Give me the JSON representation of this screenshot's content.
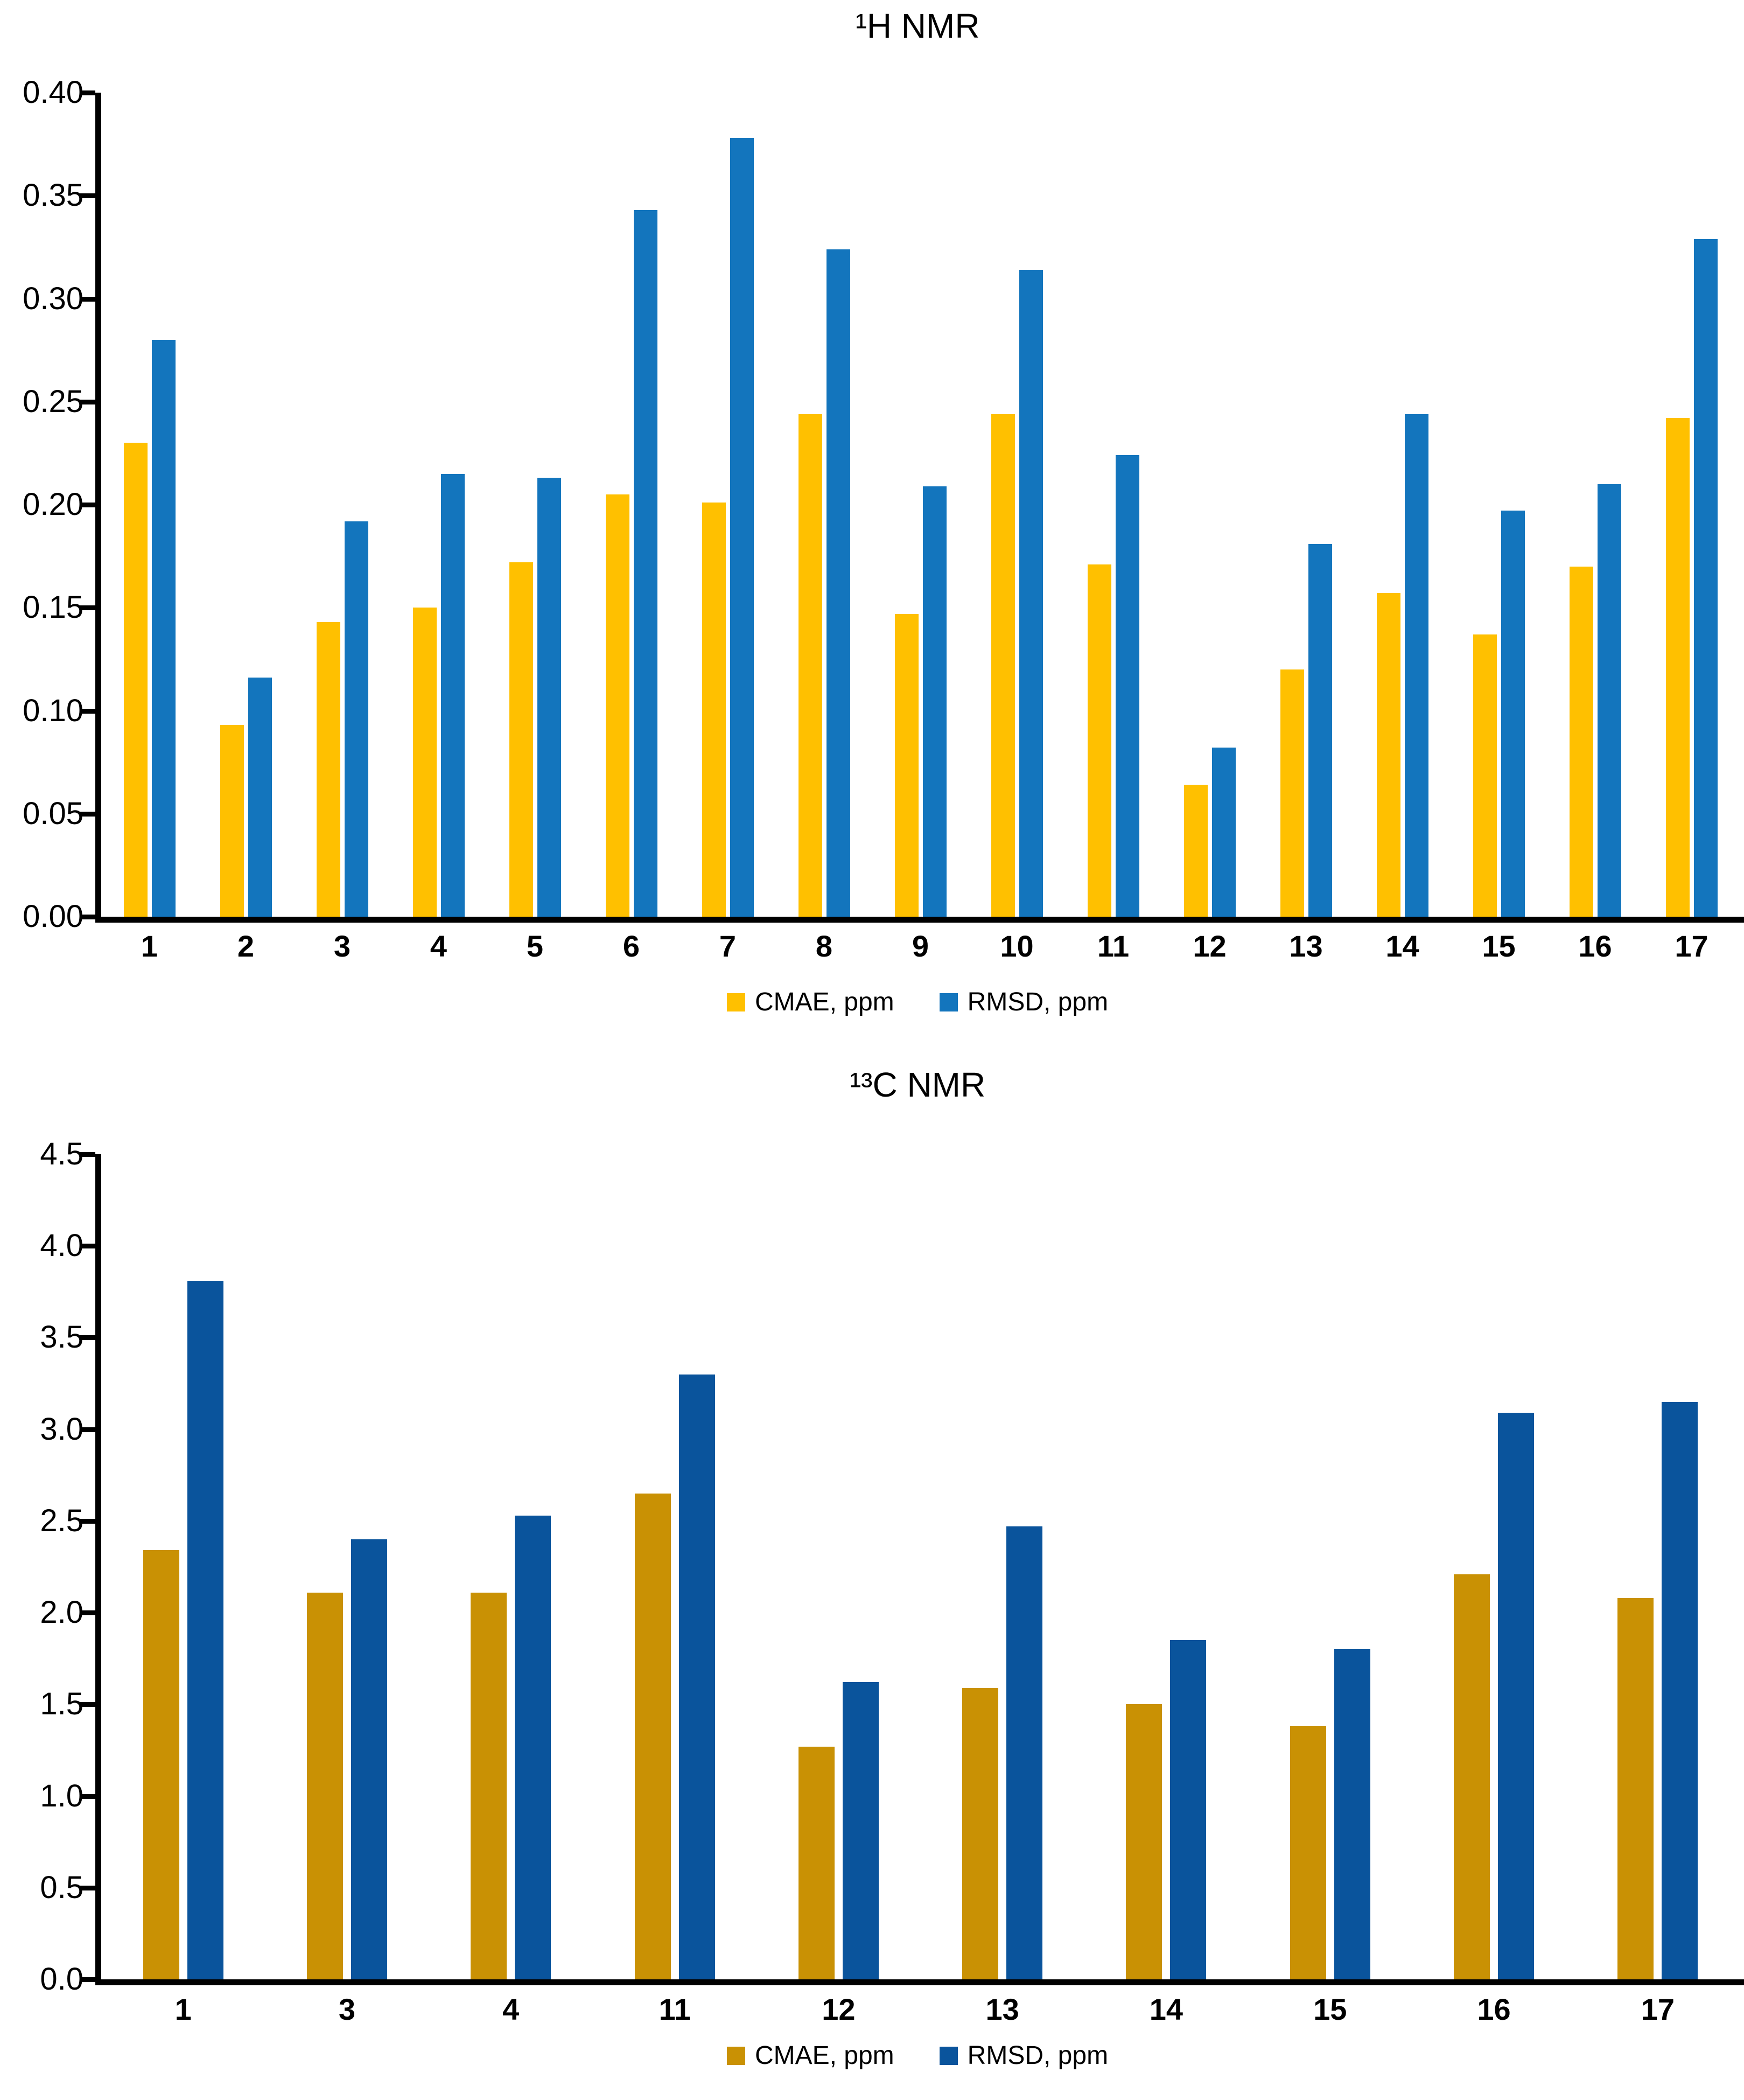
{
  "chart_data": [
    {
      "type": "bar",
      "title": "¹H NMR",
      "categories": [
        "1",
        "2",
        "3",
        "4",
        "5",
        "6",
        "7",
        "8",
        "9",
        "10",
        "11",
        "12",
        "13",
        "14",
        "15",
        "16",
        "17"
      ],
      "series": [
        {
          "name": "CMAE, ppm",
          "color": "#FFC000",
          "values": [
            0.23,
            0.093,
            0.143,
            0.15,
            0.172,
            0.205,
            0.201,
            0.244,
            0.147,
            0.244,
            0.171,
            0.064,
            0.12,
            0.157,
            0.137,
            0.17,
            0.242
          ]
        },
        {
          "name": "RMSD, ppm",
          "color": "#1375BD",
          "values": [
            0.28,
            0.116,
            0.192,
            0.215,
            0.213,
            0.343,
            0.378,
            0.324,
            0.209,
            0.314,
            0.224,
            0.082,
            0.181,
            0.244,
            0.197,
            0.21,
            0.329
          ]
        }
      ],
      "xlabel": "",
      "ylabel": "",
      "ylim": [
        0,
        0.4
      ],
      "ytick_labels": [
        "0.00",
        "0.05",
        "0.10",
        "0.15",
        "0.20",
        "0.25",
        "0.30",
        "0.35",
        "0.40"
      ],
      "grid": false,
      "legend_position": "bottom"
    },
    {
      "type": "bar",
      "title": "¹³C NMR",
      "categories": [
        "1",
        "3",
        "4",
        "11",
        "12",
        "13",
        "14",
        "15",
        "16",
        "17"
      ],
      "series": [
        {
          "name": "CMAE, ppm",
          "color": "#C99104",
          "values": [
            2.34,
            2.11,
            2.11,
            2.65,
            1.27,
            1.59,
            1.5,
            1.38,
            2.21,
            2.08
          ]
        },
        {
          "name": "RMSD, ppm",
          "color": "#0A549C",
          "values": [
            3.81,
            2.4,
            2.53,
            3.3,
            1.62,
            2.47,
            1.85,
            1.8,
            3.09,
            3.15
          ]
        }
      ],
      "xlabel": "",
      "ylabel": "",
      "ylim": [
        0,
        4.5
      ],
      "ytick_labels": [
        "0.0",
        "0.5",
        "1.0",
        "1.5",
        "2.0",
        "2.5",
        "3.0",
        "3.5",
        "4.0",
        "4.5"
      ],
      "grid": false,
      "legend_position": "bottom"
    }
  ]
}
